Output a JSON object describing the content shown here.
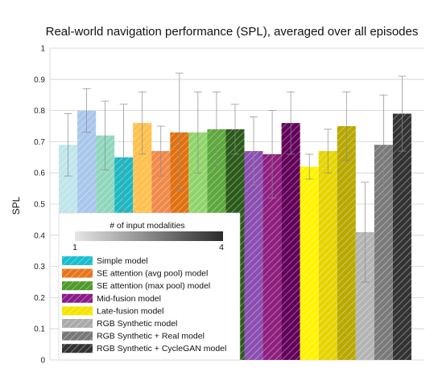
{
  "chart_data": {
    "type": "bar",
    "title": "Real-world navigation performance (SPL), averaged over all episodes",
    "xlabel": "",
    "ylabel": "SPL",
    "ylim": [
      0,
      1
    ],
    "yticks": [
      "0",
      "0.1",
      "0.2",
      "0.3",
      "0.4",
      "0.5",
      "0.6",
      "0.7",
      "0.8",
      "0.9",
      "1"
    ],
    "grid": true,
    "legend_position": "bottom-left",
    "colorbar": {
      "title": "# of input modalities",
      "min_label": "1",
      "max_label": "4"
    },
    "series": [
      {
        "name": "Simple model",
        "color": "#17becf",
        "values": [
          0.69,
          0.8,
          0.72,
          0.65
        ],
        "errors": [
          0.1,
          0.07,
          0.11,
          0.17
        ]
      },
      {
        "name": "SE attention (avg pool) model",
        "color": "#e8751a",
        "values": [
          0.76,
          0.67,
          0.73
        ],
        "errors": [
          0.1,
          0.08,
          0.19
        ]
      },
      {
        "name": "SE attention (max pool) model",
        "color": "#4e9a2a",
        "values": [
          0.73,
          0.74,
          0.74
        ],
        "errors": [
          0.13,
          0.12,
          0.08
        ]
      },
      {
        "name": "Mid-fusion model",
        "color": "#8b1a8b",
        "values": [
          0.67,
          0.66,
          0.76
        ],
        "errors": [
          0.11,
          0.14,
          0.1
        ]
      },
      {
        "name": "Late-fusion model",
        "color": "#f5e400",
        "values": [
          0.62,
          0.67,
          0.75
        ],
        "errors": [
          0.04,
          0.07,
          0.11
        ]
      },
      {
        "name": "RGB Synthetic model",
        "color": "#aaaaaa",
        "values": [
          0.41
        ],
        "errors": [
          0.16
        ]
      },
      {
        "name": "RGB Synthetic + Real model",
        "color": "#777777",
        "values": [
          0.69
        ],
        "errors": [
          0.16
        ]
      },
      {
        "name": "RGB Synthetic + CycleGAN model",
        "color": "#333333",
        "values": [
          0.79
        ],
        "errors": [
          0.12
        ]
      }
    ],
    "bar_colors": [
      "#bfe6ea",
      "#a9c6ec",
      "#8fd6bd",
      "#1bb8c4",
      "#ffc04d",
      "#f0894a",
      "#e07010",
      "#8fd46a",
      "#5ca83c",
      "#2a5a1a",
      "#8a4fb0",
      "#8e1f7e",
      "#62005a",
      "#fff400",
      "#e6d400",
      "#b8a800",
      "#b4b4b4",
      "#7a7a7a",
      "#333333"
    ]
  }
}
